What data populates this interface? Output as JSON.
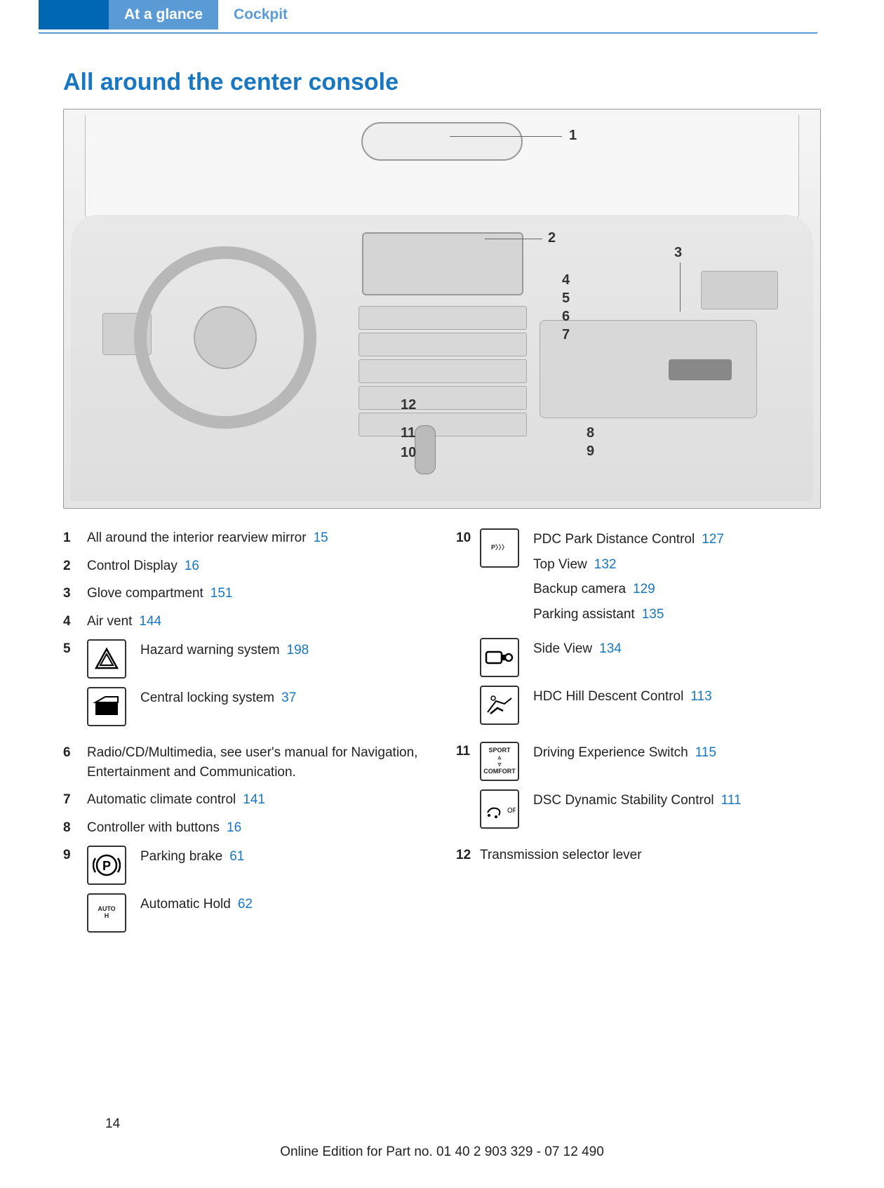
{
  "header": {
    "tab_active": "At a glance",
    "tab_secondary": "Cockpit"
  },
  "section_title": "All around the center console",
  "diagram": {
    "callouts": [
      "1",
      "2",
      "3",
      "4",
      "5",
      "6",
      "7",
      "8",
      "9",
      "10",
      "11",
      "12"
    ]
  },
  "colors": {
    "accent": "#0068b3",
    "tab_active_bg": "#5a9bd5",
    "link": "#1976c0",
    "heading": "#1976c0"
  },
  "left_column": [
    {
      "num": "1",
      "text": "All around the interior rearview mir­ror",
      "page": "15"
    },
    {
      "num": "2",
      "text": "Control Display",
      "page": "16"
    },
    {
      "num": "3",
      "text": "Glove compartment",
      "page": "151"
    },
    {
      "num": "4",
      "text": "Air vent",
      "page": "144"
    },
    {
      "num": "5",
      "subs": [
        {
          "icon": "hazard",
          "text": "Hazard warning system",
          "page": "198"
        },
        {
          "icon": "lock",
          "text": "Central locking system",
          "page": "37"
        }
      ]
    },
    {
      "num": "6",
      "text": "Radio/CD/Multimedia, see user's manual for Navigation, Entertainment and Communi­cation."
    },
    {
      "num": "7",
      "text": "Automatic climate control",
      "page": "141"
    },
    {
      "num": "8",
      "text": "Controller with buttons",
      "page": "16"
    },
    {
      "num": "9",
      "subs": [
        {
          "icon": "parking",
          "text": "Parking brake",
          "page": "61"
        },
        {
          "icon": "autoh",
          "icon_text": "AUTO H",
          "text": "Automatic Hold",
          "page": "62"
        }
      ]
    }
  ],
  "right_column": [
    {
      "num": "10",
      "subs": [
        {
          "icon": "pdc",
          "icon_text": "P〉〉〉",
          "stack": [
            {
              "text": "PDC Park Distance Control",
              "page": "127"
            },
            {
              "text": "Top View",
              "page": "132"
            },
            {
              "text": "Backup camera",
              "page": "129"
            },
            {
              "text": "Parking assistant",
              "page": "135"
            }
          ]
        },
        {
          "icon": "sideview",
          "text": "Side View",
          "page": "134"
        },
        {
          "icon": "hdc",
          "text": "HDC Hill Descent Control",
          "page": "113"
        }
      ]
    },
    {
      "num": "11",
      "subs": [
        {
          "icon": "sport",
          "icon_text": "SPORT ▵ ▿ COMFORT",
          "text": "Driving Experience Switch",
          "page": "115"
        },
        {
          "icon": "dsc",
          "icon_text": "OFF",
          "text": "DSC Dynamic Stability Con­trol",
          "page": "111"
        }
      ]
    },
    {
      "num": "12",
      "text": "Transmission selector lever"
    }
  ],
  "page_number": "14",
  "footer": "Online Edition for Part no. 01 40 2 903 329 - 07 12 490"
}
